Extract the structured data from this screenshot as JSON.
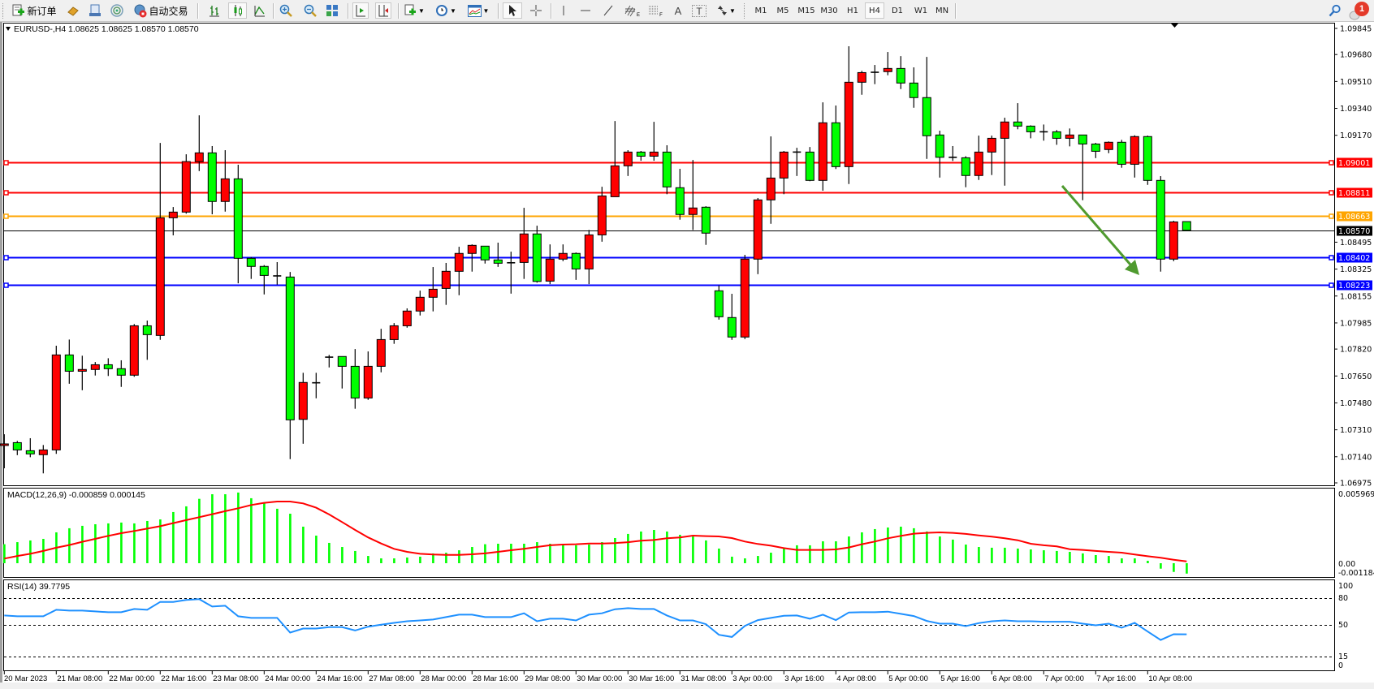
{
  "toolbar": {
    "new_order_label": "新订单",
    "auto_trading_label": "自动交易",
    "timeframes": [
      "M1",
      "M5",
      "M15",
      "M30",
      "H1",
      "H4",
      "D1",
      "W1",
      "MN"
    ],
    "active_timeframe": "H4",
    "notification_count": "1",
    "fib_channel_sub": "E",
    "fib_sub": "F",
    "text_tool": "A",
    "text_label_tool": "T"
  },
  "chart": {
    "symbol_period": "EURUSD-,H4",
    "ohlc_readout": "1.08625 1.08625 1.08570 1.08570",
    "macd_header": "MACD(12,26,9) -0.000859 0.000145",
    "rsi_header": "RSI(14) 39.7795"
  },
  "colors": {
    "bull_candle": "#ff0000",
    "bear_candle": "#00ff00",
    "resistance": "#ff0000",
    "pivot": "#ffa500",
    "support": "#0000ff",
    "current_price": "#000000",
    "macd_histogram": "#00ff00",
    "macd_signal": "#ff0000",
    "rsi_line": "#1e90ff",
    "arrow": "#4f9a2f"
  },
  "price_axis": {
    "labels": [
      "1.09845",
      "1.09680",
      "1.09510",
      "1.09340",
      "1.09170",
      "1.08495",
      "1.08325",
      "1.08155",
      "1.07985",
      "1.07820",
      "1.07650",
      "1.07480",
      "1.07310",
      "1.07140",
      "1.06975"
    ]
  },
  "levels": [
    {
      "price": "1.09001",
      "color": "#ff0000",
      "kind": "resistance"
    },
    {
      "price": "1.08811",
      "color": "#ff0000",
      "kind": "resistance"
    },
    {
      "price": "1.08663",
      "color": "#ffa500",
      "kind": "pivot"
    },
    {
      "price": "1.08402",
      "color": "#0000ff",
      "kind": "support"
    },
    {
      "price": "1.08223",
      "color": "#0000ff",
      "kind": "support"
    }
  ],
  "current_price": "1.08570",
  "macd_axis": {
    "labels": [
      "0.005969",
      "0.00",
      "-0.001184"
    ]
  },
  "rsi_axis": {
    "labels": [
      "100",
      "80",
      "50",
      "15",
      "0"
    ],
    "levels": [
      80,
      50,
      15
    ]
  },
  "time_axis": {
    "labels": [
      "20 Mar 2023",
      "21 Mar 08:00",
      "22 Mar 00:00",
      "22 Mar 16:00",
      "23 Mar 08:00",
      "24 Mar 00:00",
      "24 Mar 16:00",
      "27 Mar 08:00",
      "28 Mar 00:00",
      "28 Mar 16:00",
      "29 Mar 08:00",
      "30 Mar 00:00",
      "30 Mar 16:00",
      "31 Mar 08:00",
      "3 Apr 00:00",
      "3 Apr 16:00",
      "4 Apr 08:00",
      "5 Apr 00:00",
      "5 Apr 16:00",
      "6 Apr 08:00",
      "7 Apr 00:00",
      "7 Apr 16:00",
      "10 Apr 08:00"
    ]
  },
  "chart_data": [
    {
      "type": "candlestick",
      "title": "EURUSD-,H4",
      "ylim": [
        1.06975,
        1.09845
      ],
      "ohlc_fields": [
        "open",
        "high",
        "low",
        "close"
      ],
      "candles": [
        [
          1.07211,
          1.07282,
          1.07067,
          1.07221
        ],
        [
          1.07229,
          1.0724,
          1.0715,
          1.07183
        ],
        [
          1.07178,
          1.07257,
          1.07137,
          1.07158
        ],
        [
          1.07153,
          1.07214,
          1.07035,
          1.07183
        ],
        [
          1.07183,
          1.07841,
          1.07158,
          1.07783
        ],
        [
          1.07783,
          1.0788,
          1.07601,
          1.0768
        ],
        [
          1.0768,
          1.07778,
          1.0756,
          1.07691
        ],
        [
          1.07691,
          1.07738,
          1.07653,
          1.07721
        ],
        [
          1.07721,
          1.07762,
          1.0765,
          1.07696
        ],
        [
          1.07696,
          1.07749,
          1.07581,
          1.07655
        ],
        [
          1.07655,
          1.07978,
          1.07645,
          1.07967
        ],
        [
          1.07967,
          1.08,
          1.07752,
          1.07911
        ],
        [
          1.07906,
          1.09122,
          1.07878,
          1.08649
        ],
        [
          1.08649,
          1.08717,
          1.08538,
          1.08685
        ],
        [
          1.08685,
          1.0905,
          1.08675,
          1.09004
        ],
        [
          1.09004,
          1.09296,
          1.08944,
          1.09059
        ],
        [
          1.09059,
          1.09102,
          1.08671,
          1.08752
        ],
        [
          1.08752,
          1.09076,
          1.08688,
          1.08895
        ],
        [
          1.08895,
          1.08984,
          1.08235,
          1.08393
        ],
        [
          1.08393,
          1.08401,
          1.08263,
          1.08342
        ],
        [
          1.08342,
          1.0835,
          1.08165,
          1.08285
        ],
        [
          1.08282,
          1.08369,
          1.08227,
          1.08282
        ],
        [
          1.08275,
          1.08307,
          1.07125,
          1.07373
        ],
        [
          1.07376,
          1.0767,
          1.07222,
          1.07609
        ],
        [
          1.07607,
          1.0767,
          1.07509,
          1.07607
        ],
        [
          1.07769,
          1.07783,
          1.07704,
          1.07769
        ],
        [
          1.07773,
          1.07773,
          1.07571,
          1.07711
        ],
        [
          1.07711,
          1.0782,
          1.07443,
          1.07511
        ],
        [
          1.07511,
          1.07805,
          1.07499,
          1.07711
        ],
        [
          1.07711,
          1.07948,
          1.07673,
          1.0788
        ],
        [
          1.0788,
          1.07984,
          1.07853,
          1.07967
        ],
        [
          1.07967,
          1.08077,
          1.07955,
          1.0806
        ],
        [
          1.0806,
          1.08189,
          1.08032,
          1.08147
        ],
        [
          1.08147,
          1.08338,
          1.08058,
          1.08198
        ],
        [
          1.08203,
          1.08364,
          1.08099,
          1.08311
        ],
        [
          1.08311,
          1.08466,
          1.0816,
          1.08424
        ],
        [
          1.08424,
          1.08481,
          1.08309,
          1.08475
        ],
        [
          1.0847,
          1.0847,
          1.0836,
          1.08383
        ],
        [
          1.08383,
          1.08492,
          1.08339,
          1.08362
        ],
        [
          1.08365,
          1.08435,
          1.0817,
          1.08365
        ],
        [
          1.08367,
          1.08712,
          1.08263,
          1.08547
        ],
        [
          1.08547,
          1.08599,
          1.08239,
          1.08247
        ],
        [
          1.08249,
          1.08481,
          1.0823,
          1.08388
        ],
        [
          1.08388,
          1.08481,
          1.08375,
          1.08424
        ],
        [
          1.08424,
          1.0843,
          1.08257,
          1.08326
        ],
        [
          1.08326,
          1.08572,
          1.0823,
          1.08541
        ],
        [
          1.08541,
          1.08845,
          1.08498,
          1.08787
        ],
        [
          1.08782,
          1.0926,
          1.08782,
          1.08977
        ],
        [
          1.08977,
          1.09076,
          1.08913,
          1.09064
        ],
        [
          1.09064,
          1.09071,
          1.09009,
          1.09038
        ],
        [
          1.09038,
          1.09255,
          1.09009,
          1.09064
        ],
        [
          1.09064,
          1.09107,
          1.08798,
          1.08844
        ],
        [
          1.08839,
          1.08958,
          1.08637,
          1.0867
        ],
        [
          1.0867,
          1.09014,
          1.08572,
          1.08711
        ],
        [
          1.08716,
          1.08722,
          1.08478,
          1.08552
        ],
        [
          1.08188,
          1.08222,
          1.08006,
          1.08024
        ],
        [
          1.08019,
          1.08169,
          1.07878,
          1.07896
        ],
        [
          1.07896,
          1.08415,
          1.07883,
          1.08388
        ],
        [
          1.08388,
          1.08774,
          1.08293,
          1.08762
        ],
        [
          1.08762,
          1.09163,
          1.08611,
          1.089
        ],
        [
          1.089,
          1.09071,
          1.08798,
          1.09064
        ],
        [
          1.09064,
          1.09091,
          1.08913,
          1.09064
        ],
        [
          1.09064,
          1.09096,
          1.0888,
          1.08885
        ],
        [
          1.08885,
          1.09378,
          1.0882,
          1.09249
        ],
        [
          1.09249,
          1.09358,
          1.08957,
          1.08972
        ],
        [
          1.08972,
          1.09732,
          1.08862,
          1.09505
        ],
        [
          1.09505,
          1.09577,
          1.09426,
          1.09566
        ],
        [
          1.09568,
          1.09614,
          1.09493,
          1.09568
        ],
        [
          1.09572,
          1.09696,
          1.09549,
          1.09592
        ],
        [
          1.09592,
          1.0967,
          1.09462,
          1.095
        ],
        [
          1.095,
          1.09599,
          1.09344,
          1.09408
        ],
        [
          1.09408,
          1.09665,
          1.09021,
          1.09167
        ],
        [
          1.09172,
          1.09199,
          1.08903,
          1.09031
        ],
        [
          1.09031,
          1.09102,
          1.09008,
          1.09031
        ],
        [
          1.09028,
          1.09038,
          1.08842,
          1.08916
        ],
        [
          1.08916,
          1.09168,
          1.08888,
          1.09064
        ],
        [
          1.09064,
          1.09168,
          1.08919,
          1.09151
        ],
        [
          1.09151,
          1.09281,
          1.08852,
          1.09254
        ],
        [
          1.09254,
          1.09373,
          1.09208,
          1.09228
        ],
        [
          1.09228,
          1.09233,
          1.09151,
          1.09192
        ],
        [
          1.09192,
          1.09238,
          1.09136,
          1.09192
        ],
        [
          1.09192,
          1.09203,
          1.0911,
          1.09151
        ],
        [
          1.09151,
          1.09213,
          1.091,
          1.09172
        ],
        [
          1.09172,
          1.09172,
          1.0876,
          1.09115
        ],
        [
          1.09115,
          1.09122,
          1.09026,
          1.09069
        ],
        [
          1.0908,
          1.09131,
          1.09057,
          1.09126
        ],
        [
          1.09126,
          1.09141,
          1.08965,
          1.08987
        ],
        [
          1.08987,
          1.0917,
          1.08903,
          1.09162
        ],
        [
          1.09162,
          1.09168,
          1.08857,
          1.08885
        ],
        [
          1.08885,
          1.08912,
          1.08309,
          1.08388
        ],
        [
          1.08388,
          1.0863,
          1.08375,
          1.08623
        ],
        [
          1.08625,
          1.08625,
          1.0857,
          1.0857
        ]
      ],
      "first_bar": "20 Mar 2023",
      "last_bar": "10 Apr 2023 20:00"
    },
    {
      "type": "bar",
      "title": "MACD(12,26,9)",
      "ylim": [
        -0.001184,
        0.005969
      ],
      "series": [
        {
          "name": "MACD",
          "kind": "histogram",
          "values": [
            0.00157,
            0.00174,
            0.00188,
            0.00201,
            0.00255,
            0.00289,
            0.00309,
            0.00322,
            0.00329,
            0.00336,
            0.00329,
            0.00349,
            0.00362,
            0.00423,
            0.0047,
            0.00532,
            0.0057,
            0.0057,
            0.00584,
            0.00537,
            0.00497,
            0.0045,
            0.00409,
            0.00302,
            0.00228,
            0.00168,
            0.00134,
            0.00101,
            0.0006,
            0.0004,
            0.0004,
            0.00047,
            0.00054,
            0.00081,
            0.00087,
            0.00107,
            0.00134,
            0.00157,
            0.00161,
            0.00161,
            0.00161,
            0.00174,
            0.00161,
            0.00154,
            0.00148,
            0.00154,
            0.00174,
            0.00208,
            0.00242,
            0.00262,
            0.00275,
            0.00262,
            0.00235,
            0.00221,
            0.00188,
            0.00121,
            0.00054,
            0.0004,
            0.0006,
            0.00087,
            0.00121,
            0.00148,
            0.00148,
            0.00181,
            0.00181,
            0.00221,
            0.00255,
            0.00282,
            0.00295,
            0.00302,
            0.00289,
            0.00262,
            0.00221,
            0.00195,
            0.00154,
            0.00134,
            0.00128,
            0.00128,
            0.00121,
            0.00114,
            0.00107,
            0.00101,
            0.00094,
            0.00081,
            0.00067,
            0.0006,
            0.0004,
            0.0004,
            0.0002,
            -0.00045,
            -0.00072,
            -0.000859
          ]
        },
        {
          "name": "Signal",
          "kind": "line",
          "values": [
            0.00038,
            0.0006,
            0.00078,
            0.00101,
            0.00128,
            0.0015,
            0.00177,
            0.00201,
            0.00226,
            0.00248,
            0.00266,
            0.00286,
            0.00306,
            0.00331,
            0.00356,
            0.0038,
            0.00405,
            0.0043,
            0.00454,
            0.00481,
            0.00499,
            0.0051,
            0.0051,
            0.00494,
            0.00459,
            0.00403,
            0.0034,
            0.00275,
            0.00213,
            0.00163,
            0.00119,
            0.00094,
            0.00078,
            0.00072,
            0.00069,
            0.00069,
            0.00074,
            0.00081,
            0.00094,
            0.00107,
            0.00119,
            0.00134,
            0.00148,
            0.00154,
            0.00157,
            0.00163,
            0.00163,
            0.00166,
            0.00174,
            0.00186,
            0.00192,
            0.00206,
            0.00213,
            0.00228,
            0.00224,
            0.00221,
            0.00208,
            0.00179,
            0.00159,
            0.00145,
            0.00125,
            0.0011,
            0.0011,
            0.0011,
            0.00114,
            0.0013,
            0.00157,
            0.00179,
            0.00206,
            0.00226,
            0.00244,
            0.00251,
            0.00255,
            0.00251,
            0.00242,
            0.0023,
            0.00219,
            0.00206,
            0.0019,
            0.00161,
            0.00148,
            0.00139,
            0.00116,
            0.0011,
            0.00101,
            0.00094,
            0.00087,
            0.00072,
            0.00058,
            0.00045,
            0.00029,
            0.000145
          ]
        }
      ]
    },
    {
      "type": "line",
      "title": "RSI(14)",
      "ylim": [
        0,
        100
      ],
      "levels": [
        80,
        50,
        15
      ],
      "series": [
        {
          "name": "RSI",
          "values": [
            60.5,
            59.6,
            59.6,
            59.6,
            66.8,
            65.9,
            65.9,
            65.0,
            64.1,
            64.1,
            67.7,
            66.8,
            75.5,
            75.5,
            77.6,
            78.5,
            70.4,
            71.3,
            59.6,
            57.8,
            57.8,
            57.8,
            41.6,
            46.1,
            46.1,
            47.6,
            47.6,
            44.0,
            48.2,
            50.3,
            52.4,
            54.2,
            55.1,
            56.0,
            58.7,
            61.4,
            61.4,
            58.7,
            58.7,
            58.7,
            62.9,
            54.2,
            56.9,
            56.9,
            55.1,
            61.4,
            62.9,
            67.4,
            68.6,
            67.7,
            67.7,
            60.5,
            55.1,
            55.1,
            50.9,
            39.2,
            36.8,
            49.1,
            55.4,
            57.8,
            60.2,
            60.5,
            56.9,
            61.4,
            55.4,
            63.8,
            64.1,
            64.1,
            64.7,
            62.3,
            59.9,
            54.5,
            51.5,
            51.5,
            48.8,
            52.1,
            54.2,
            55.1,
            54.2,
            54.2,
            53.6,
            53.6,
            53.6,
            51.5,
            49.7,
            51.5,
            47.0,
            52.4,
            42.8,
            33.5,
            39.8,
            39.7795
          ]
        }
      ]
    }
  ]
}
